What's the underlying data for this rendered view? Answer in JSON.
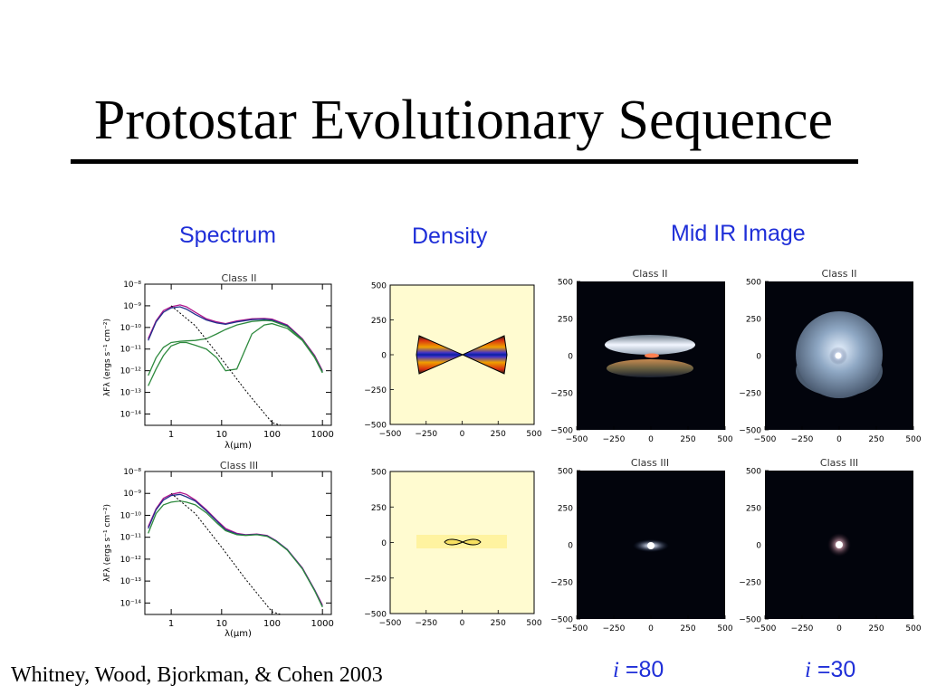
{
  "slide": {
    "title": "Protostar Evolutionary Sequence",
    "citation": "Whitney, Wood, Bjorkman, & Cohen 2003"
  },
  "columns": {
    "spectrum": "Spectrum",
    "density": "Density",
    "midir": "Mid IR Image"
  },
  "inclinations": [
    {
      "symbol": "i",
      "value": "=80"
    },
    {
      "symbol": "i",
      "value": "=30"
    }
  ],
  "classes": [
    "Class II",
    "Class III"
  ],
  "image_axis_ticks": [
    "500",
    "250",
    "0",
    "−250",
    "−500"
  ],
  "image_x_ticks": [
    "−500",
    "−250",
    "0",
    "250",
    "500"
  ],
  "colors": {
    "accent_blue": "#1f2fd8",
    "density_bg": "#fffbd0"
  },
  "chart_data": [
    {
      "type": "line",
      "title": "Class II",
      "xlabel": "λ(μm)",
      "ylabel": "λFλ (ergs s⁻¹ cm⁻²)",
      "xscale": "log",
      "yscale": "log",
      "xlim": [
        0.3,
        1500
      ],
      "ylim": [
        3e-15,
        1e-08
      ],
      "x_ticks": [
        "1",
        "10",
        "100",
        "1000"
      ],
      "y_ticks": [
        "10⁻⁸",
        "10⁻⁹",
        "10⁻¹⁰",
        "10⁻¹¹",
        "10⁻¹²",
        "10⁻¹³",
        "10⁻¹⁴"
      ],
      "series": [
        {
          "color": "#b0148c",
          "x": [
            0.35,
            0.5,
            0.7,
            1,
            1.5,
            2,
            3,
            5,
            8,
            12,
            20,
            40,
            70,
            100,
            200,
            400,
            700,
            1000
          ],
          "y": [
            3e-11,
            2e-10,
            6e-10,
            9e-10,
            1.1e-09,
            9e-10,
            5e-10,
            2.5e-10,
            1.8e-10,
            1.5e-10,
            2e-10,
            2.5e-10,
            2.6e-10,
            2.4e-10,
            1.3e-10,
            3e-11,
            5e-12,
            1e-12
          ]
        },
        {
          "color": "#22308c",
          "x": [
            0.35,
            0.5,
            0.7,
            1,
            1.5,
            2,
            3,
            5,
            8,
            12,
            20,
            40,
            70,
            100,
            200,
            400,
            700,
            1000
          ],
          "y": [
            2.5e-11,
            1.8e-10,
            5e-10,
            8e-10,
            9e-10,
            7e-10,
            4e-10,
            2.2e-10,
            1.6e-10,
            1.4e-10,
            1.8e-10,
            2.3e-10,
            2.4e-10,
            2.2e-10,
            1.2e-10,
            2.8e-11,
            4.5e-12,
            9e-13
          ]
        },
        {
          "color": "#2e8a3e",
          "x": [
            0.35,
            0.5,
            0.7,
            1,
            1.5,
            2,
            3,
            5,
            8,
            12,
            20,
            40,
            70,
            100,
            200,
            400,
            700,
            1000
          ],
          "y": [
            2e-13,
            1.2e-12,
            5e-12,
            1.4e-11,
            2e-11,
            2e-11,
            1.5e-11,
            1e-11,
            4e-12,
            1e-12,
            1.2e-12,
            5e-11,
            1.3e-10,
            1.5e-10,
            9e-11,
            2.5e-11,
            4e-12,
            8e-13
          ]
        },
        {
          "color": "#2e8a3e",
          "x": [
            0.35,
            0.5,
            0.7,
            1,
            1.5,
            2,
            3,
            5,
            8,
            12,
            20,
            40,
            70,
            100,
            200,
            400,
            700,
            1000
          ],
          "y": [
            6e-13,
            4e-12,
            1.2e-11,
            2e-11,
            2.3e-11,
            2.4e-11,
            2.5e-11,
            3e-11,
            5e-11,
            8e-11,
            1.3e-10,
            1.9e-10,
            2.1e-10,
            2e-10,
            1.1e-10,
            2.7e-11,
            4.3e-12,
            8.5e-13
          ]
        },
        {
          "color": "#000000",
          "dashed": true,
          "x": [
            1,
            3,
            10,
            30,
            100,
            150
          ],
          "y": [
            1e-09,
            1.2e-10,
            3.5e-12,
            1.2e-13,
            4e-15,
            1.5e-15
          ]
        }
      ]
    },
    {
      "type": "line",
      "title": "Class III",
      "xlabel": "λ(μm)",
      "ylabel": "λFλ (ergs s⁻¹ cm⁻²)",
      "xscale": "log",
      "yscale": "log",
      "xlim": [
        0.3,
        1500
      ],
      "ylim": [
        3e-15,
        1e-08
      ],
      "x_ticks": [
        "1",
        "10",
        "100",
        "1000"
      ],
      "y_ticks": [
        "10⁻⁸",
        "10⁻⁹",
        "10⁻¹⁰",
        "10⁻¹¹",
        "10⁻¹²",
        "10⁻¹³",
        "10⁻¹⁴"
      ],
      "series": [
        {
          "color": "#b0148c",
          "x": [
            0.35,
            0.5,
            0.7,
            1,
            1.5,
            2,
            3,
            5,
            8,
            12,
            20,
            30,
            50,
            80,
            120,
            200,
            400,
            700,
            1000
          ],
          "y": [
            3e-11,
            2e-10,
            6e-10,
            9e-10,
            1.1e-09,
            9e-10,
            5e-10,
            1.8e-10,
            6e-11,
            2.5e-11,
            1.5e-11,
            1.3e-11,
            1.4e-11,
            1.2e-11,
            7e-12,
            2.8e-12,
            4e-13,
            4e-14,
            8e-15
          ]
        },
        {
          "color": "#22308c",
          "x": [
            0.35,
            0.5,
            0.7,
            1,
            1.5,
            2,
            3,
            5,
            8,
            12,
            20,
            30,
            50,
            80,
            120,
            200,
            400,
            700,
            1000
          ],
          "y": [
            2.5e-11,
            1.8e-10,
            5e-10,
            8e-10,
            9e-10,
            7e-10,
            4.5e-10,
            1.6e-10,
            5.5e-11,
            2.2e-11,
            1.4e-11,
            1.25e-11,
            1.35e-11,
            1.15e-11,
            6.8e-12,
            2.7e-12,
            3.8e-13,
            3.8e-14,
            7e-15
          ]
        },
        {
          "color": "#2e8a3e",
          "x": [
            0.35,
            0.5,
            0.7,
            1,
            1.5,
            2,
            3,
            5,
            8,
            12,
            20,
            30,
            50,
            80,
            120,
            200,
            400,
            700,
            1000
          ],
          "y": [
            1.5e-11,
            1.2e-10,
            3e-10,
            4e-10,
            4.5e-10,
            4e-10,
            3e-10,
            1.3e-10,
            4.5e-11,
            2e-11,
            1.3e-11,
            1.2e-11,
            1.3e-11,
            1.1e-11,
            6.5e-12,
            2.6e-12,
            3.6e-13,
            3.6e-14,
            6.5e-15
          ]
        },
        {
          "color": "#000000",
          "dashed": true,
          "x": [
            1,
            3,
            10,
            30,
            100,
            150
          ],
          "y": [
            1e-09,
            1.2e-10,
            3.5e-12,
            1.2e-13,
            4e-15,
            1.5e-15
          ]
        }
      ]
    }
  ]
}
